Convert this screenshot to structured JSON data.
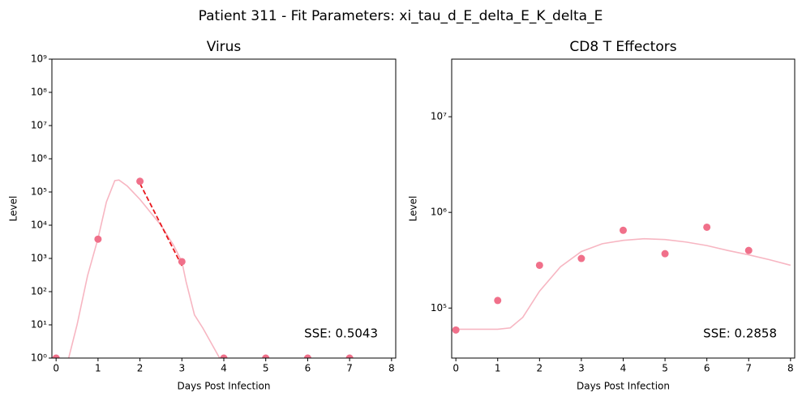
{
  "title": "Patient 311 - Fit Parameters: xi_tau_d_E_delta_E_K_delta_E",
  "chart_data": [
    {
      "type": "scatter",
      "title": "Virus",
      "xlabel": "Days Post Infection",
      "ylabel": "Level",
      "yscale": "log",
      "xlim": [
        -0.1,
        8.1
      ],
      "ylim": [
        1,
        1000000000
      ],
      "xticks": [
        0,
        1,
        2,
        3,
        4,
        5,
        6,
        7,
        8
      ],
      "yticks": [
        {
          "value": 1,
          "label": "10⁰"
        },
        {
          "value": 10,
          "label": "10¹"
        },
        {
          "value": 100,
          "label": "10²"
        },
        {
          "value": 1000,
          "label": "10³"
        },
        {
          "value": 10000,
          "label": "10⁴"
        },
        {
          "value": 100000,
          "label": "10⁵"
        },
        {
          "value": 1000000,
          "label": "10⁶"
        },
        {
          "value": 10000000,
          "label": "10⁷"
        },
        {
          "value": 100000000,
          "label": "10⁸"
        },
        {
          "value": 1000000000,
          "label": "10⁹"
        }
      ],
      "points": {
        "color": "#f0708a",
        "x": [
          0,
          1,
          2,
          3,
          4,
          5,
          6,
          7
        ],
        "values": [
          1,
          3800,
          210000,
          800,
          1,
          1,
          1,
          1
        ]
      },
      "fit": {
        "color": "#f7b6c2",
        "x": [
          0.3,
          0.5,
          0.75,
          1,
          1.2,
          1.4,
          1.5,
          1.7,
          2,
          2.5,
          2.8,
          3,
          3.1,
          3.3,
          3.5,
          3.9
        ],
        "values": [
          1,
          10,
          300,
          4000,
          50000,
          220000,
          230000,
          150000,
          60000,
          10000,
          2500,
          800,
          200,
          20,
          8,
          1
        ]
      },
      "trend": {
        "color": "#e8161b",
        "x": [
          2,
          3
        ],
        "values": [
          180000,
          600
        ]
      },
      "annotation": "SSE: 0.5043"
    },
    {
      "type": "scatter",
      "title": "CD8 T Effectors",
      "xlabel": "Days Post Infection",
      "ylabel": "Level",
      "yscale": "log",
      "xlim": [
        -0.1,
        8.1
      ],
      "ylim": [
        30000,
        40000000
      ],
      "xticks": [
        0,
        1,
        2,
        3,
        4,
        5,
        6,
        7,
        8
      ],
      "yticks": [
        {
          "value": 100000,
          "label": "10⁵"
        },
        {
          "value": 1000000,
          "label": "10⁶"
        },
        {
          "value": 10000000,
          "label": "10⁷"
        }
      ],
      "points": {
        "color": "#f0708a",
        "x": [
          0,
          1,
          2,
          3,
          4,
          5,
          6,
          7
        ],
        "values": [
          59000,
          120000,
          280000,
          330000,
          650000,
          370000,
          700000,
          400000
        ]
      },
      "fit": {
        "color": "#f7b6c2",
        "x": [
          0,
          1,
          1.3,
          1.6,
          2,
          2.5,
          3,
          3.5,
          4,
          4.5,
          5,
          5.5,
          6,
          6.5,
          7,
          7.5,
          8
        ],
        "values": [
          60000,
          60000,
          62000,
          80000,
          150000,
          270000,
          390000,
          470000,
          510000,
          530000,
          520000,
          490000,
          450000,
          400000,
          360000,
          320000,
          280000
        ]
      },
      "annotation": "SSE: 0.2858"
    }
  ]
}
